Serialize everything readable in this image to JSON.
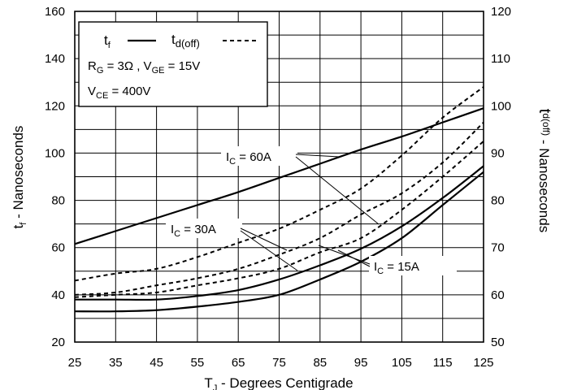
{
  "chart_data": {
    "type": "line",
    "x": [
      25,
      35,
      45,
      55,
      65,
      75,
      85,
      95,
      105,
      115,
      125
    ],
    "xlim": [
      25,
      125
    ],
    "ylim": [
      20,
      160
    ],
    "ylim_right": [
      50,
      120
    ],
    "x_ticks": [
      "25",
      "35",
      "45",
      "55",
      "65",
      "75",
      "85",
      "95",
      "105",
      "115",
      "125"
    ],
    "y_ticks": [
      "20",
      "40",
      "60",
      "80",
      "100",
      "120",
      "140",
      "160"
    ],
    "y_ticks_right": [
      "50",
      "60",
      "70",
      "80",
      "90",
      "100",
      "110",
      "120"
    ],
    "xlabel": {
      "main": "T",
      "sub": "J",
      "rest": " - Degrees Centigrade"
    },
    "ylabel": {
      "main": "t",
      "sub": "f",
      "rest": " - Nanoseconds"
    },
    "ylabel_right": {
      "main": "t",
      "sub": "d(off)",
      "rest": " - Nanoseconds"
    },
    "grid": true,
    "legend": {
      "tf_main": "t",
      "tf_sub": "f",
      "td_main": "t",
      "td_sub": "d(off)",
      "line1": {
        "a": "R",
        "a_sub": "G",
        "b": " = 3Ω ,  V",
        "b_sub": "GE",
        "c": " = 15V"
      },
      "line2": {
        "a": "V",
        "a_sub": "CE",
        "b": " = 400V"
      }
    },
    "annotations": [
      {
        "main": "I",
        "sub": "C",
        "rest": " = 60A"
      },
      {
        "main": "I",
        "sub": "C",
        "rest": " = 30A"
      },
      {
        "main": "I",
        "sub": "C",
        "rest": " = 15A"
      }
    ],
    "series": [
      {
        "axis": "left",
        "style": "solid",
        "values": [
          61.5,
          67,
          72.5,
          78,
          83.5,
          89.5,
          95.5,
          101.5,
          107,
          113,
          119
        ]
      },
      {
        "axis": "left",
        "style": "solid",
        "values": [
          38,
          38,
          38,
          39.5,
          42,
          46.5,
          52.5,
          59.5,
          69,
          81,
          94.5
        ]
      },
      {
        "axis": "left",
        "style": "solid",
        "values": [
          33,
          33,
          33.5,
          35,
          37,
          40,
          46.5,
          54,
          64,
          78,
          92
        ]
      },
      {
        "axis": "right",
        "style": "dashed",
        "values": [
          63,
          64.5,
          65.5,
          68,
          71,
          74,
          78,
          82.5,
          89.5,
          97.5,
          104
        ]
      },
      {
        "axis": "right",
        "style": "dashed",
        "values": [
          60,
          60.5,
          62,
          63.5,
          65.5,
          68.5,
          72,
          77,
          81.5,
          88,
          96.5
        ]
      },
      {
        "axis": "right",
        "style": "dashed",
        "values": [
          59.5,
          60,
          60.5,
          62,
          63.5,
          65.5,
          69,
          72,
          78,
          85,
          92.5
        ]
      }
    ]
  }
}
